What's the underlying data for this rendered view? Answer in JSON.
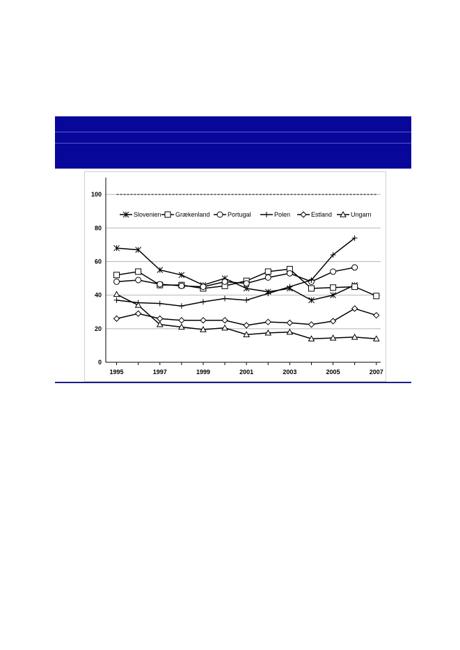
{
  "chart_data": {
    "type": "line",
    "x": [
      1995,
      1996,
      1997,
      1998,
      1999,
      2000,
      2001,
      2002,
      2003,
      2004,
      2005,
      2006,
      2007
    ],
    "x_tick_labels": [
      "1995",
      "1997",
      "1999",
      "2001",
      "2003",
      "2005",
      "2007"
    ],
    "y_ticks": [
      0,
      20,
      40,
      60,
      80,
      100
    ],
    "ylim": [
      0,
      110
    ],
    "xlim": [
      1994.5,
      2007.2
    ],
    "grid": true,
    "reference_line": {
      "value": 100,
      "style": "dashed"
    },
    "legend_position": "top",
    "series": [
      {
        "name": "Slovenien",
        "marker": "star",
        "values": [
          68,
          67,
          55,
          52,
          46,
          50,
          44,
          42,
          44,
          37,
          40,
          46,
          null
        ]
      },
      {
        "name": "Grækenland",
        "marker": "square",
        "values": [
          52,
          54,
          46,
          46,
          44,
          45.5,
          48.5,
          54,
          55.5,
          44,
          44.5,
          45,
          39.5
        ]
      },
      {
        "name": "Portugal",
        "marker": "circle",
        "values": [
          48,
          49,
          46.5,
          45.5,
          45,
          48,
          47,
          50.5,
          53,
          48,
          54,
          56.5,
          null
        ]
      },
      {
        "name": "Polen",
        "marker": "plus",
        "values": [
          37,
          35.5,
          35,
          33.5,
          36,
          38,
          37,
          41,
          45,
          49,
          64,
          74,
          null
        ]
      },
      {
        "name": "Estland",
        "marker": "diamond",
        "values": [
          26,
          29,
          26,
          25,
          25,
          25,
          22,
          24,
          23.5,
          22.5,
          24.5,
          32,
          28
        ]
      },
      {
        "name": "Ungarn",
        "marker": "triangle",
        "values": [
          40.5,
          34,
          22.5,
          21,
          19.5,
          20.5,
          16.5,
          17.5,
          18,
          14,
          14.5,
          15,
          14
        ]
      }
    ]
  }
}
